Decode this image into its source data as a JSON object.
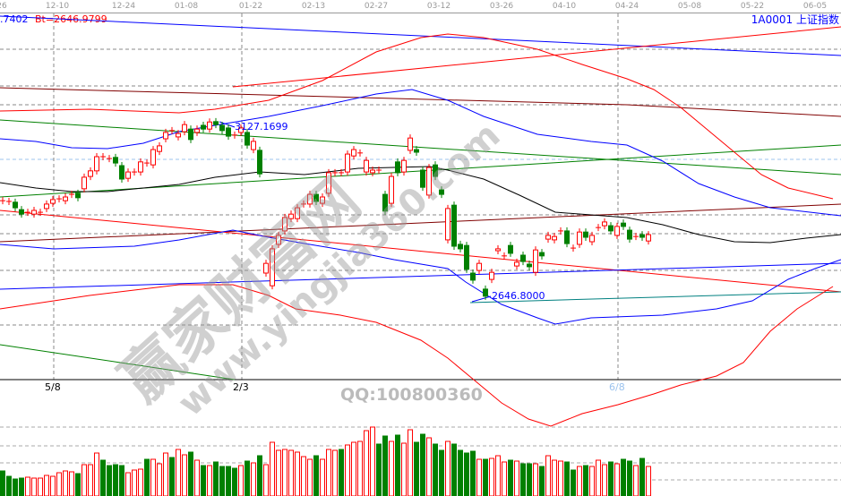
{
  "header": {
    "info_left": ".7402",
    "info_bt": "Bt=2646.9799",
    "symbol_title": "1A0001  上证指数"
  },
  "colors": {
    "up": "#ff0000",
    "down": "#008000",
    "title": "#0000ff",
    "annotation": "#0000ff"
  },
  "watermark": {
    "cn": "赢家财富网",
    "url": "www.yingjia360.com",
    "qq": "QQ:100800360"
  },
  "chart_data": {
    "type": "candlestick",
    "title": "1A0001 上证指数",
    "x_ticks": [
      "26",
      "12-10",
      "12-24",
      "01-08",
      "01-22",
      "02-13",
      "02-27",
      "03-12",
      "03-26",
      "04-10",
      "04-24",
      "05-08",
      "05-22",
      "06-05"
    ],
    "bottom_labels": [
      "5/8",
      "2/3",
      "6/8"
    ],
    "annotations": [
      {
        "text": "3127.1699",
        "price": 3127.1699
      },
      {
        "text": "2646.8000",
        "price": 2646.8
      }
    ],
    "ylim": [
      2443,
      3403
    ],
    "grid": "horizontal dashed",
    "candles_oc": [
      [
        2913,
        2913
      ],
      [
        2911,
        2911
      ],
      [
        2909,
        2894
      ],
      [
        2889,
        2877
      ],
      [
        2882,
        2882
      ],
      [
        2877,
        2887
      ],
      [
        2882,
        2882
      ],
      [
        2892,
        2904
      ],
      [
        2906,
        2916
      ],
      [
        2918,
        2918
      ],
      [
        2913,
        2923
      ],
      [
        2930,
        2930
      ],
      [
        2933,
        2921
      ],
      [
        2945,
        2976
      ],
      [
        2978,
        2993
      ],
      [
        2993,
        3031
      ],
      [
        3031,
        3031
      ],
      [
        3026,
        3026
      ],
      [
        3029,
        3014
      ],
      [
        3007,
        2971
      ],
      [
        2973,
        2990
      ],
      [
        2990,
        2990
      ],
      [
        2990,
        3017
      ],
      [
        3014,
        3014
      ],
      [
        3009,
        3050
      ],
      [
        3045,
        3060
      ],
      [
        3079,
        3096
      ],
      [
        3101,
        3101
      ],
      [
        3084,
        3093
      ],
      [
        3098,
        3117
      ],
      [
        3105,
        3077
      ],
      [
        3096,
        3105
      ],
      [
        3115,
        3105
      ],
      [
        3105,
        3124
      ],
      [
        3125,
        3117
      ],
      [
        3115,
        3101
      ],
      [
        3108,
        3086
      ],
      [
        3089,
        3089
      ],
      [
        3096,
        3108
      ],
      [
        3096,
        3062
      ],
      [
        3050,
        3072
      ],
      [
        3048,
        2985
      ],
      [
        2719,
        2745
      ],
      [
        2685,
        2784
      ],
      [
        2796,
        2820
      ],
      [
        2832,
        2868
      ],
      [
        2865,
        2877
      ],
      [
        2865,
        2894
      ],
      [
        2904,
        2904
      ],
      [
        2904,
        2930
      ],
      [
        2930,
        2911
      ],
      [
        2906,
        2923
      ],
      [
        2933,
        2988
      ],
      [
        2988,
        2988
      ],
      [
        2988,
        2988
      ],
      [
        2990,
        3038
      ],
      [
        3033,
        3050
      ],
      [
        3041,
        3041
      ],
      [
        2990,
        3021
      ],
      [
        2988,
        2995
      ],
      [
        2995,
        2995
      ],
      [
        2930,
        2885
      ],
      [
        2906,
        2978
      ],
      [
        3017,
        2988
      ],
      [
        2990,
        3021
      ],
      [
        3048,
        3081
      ],
      [
        3050,
        3043
      ],
      [
        2995,
        2949
      ],
      [
        2928,
        3002
      ],
      [
        3009,
        2978
      ],
      [
        2942,
        2930
      ],
      [
        2808,
        2892
      ],
      [
        2901,
        2791
      ],
      [
        2796,
        2784
      ],
      [
        2793,
        2729
      ],
      [
        2719,
        2700
      ],
      [
        2726,
        2745
      ],
      [
        2676,
        2657
      ],
      [
        2702,
        2721
      ],
      [
        2779,
        2784
      ],
      [
        2765,
        2765
      ],
      [
        2793,
        2772
      ],
      [
        2738,
        2748
      ],
      [
        2767,
        2750
      ],
      [
        2743,
        2736
      ],
      [
        2721,
        2781
      ],
      [
        2774,
        2765
      ],
      [
        2810,
        2820
      ],
      [
        2808,
        2817
      ],
      [
        2832,
        2832
      ],
      [
        2832,
        2798
      ],
      [
        2786,
        2786
      ],
      [
        2796,
        2829
      ],
      [
        2829,
        2815
      ],
      [
        2803,
        2820
      ],
      [
        2841,
        2841
      ],
      [
        2846,
        2856
      ],
      [
        2846,
        2832
      ],
      [
        2820,
        2844
      ],
      [
        2853,
        2844
      ],
      [
        2834,
        2810
      ],
      [
        2817,
        2817
      ],
      [
        2822,
        2815
      ],
      [
        2805,
        2822
      ]
    ],
    "volume": [
      28,
      22,
      19,
      20,
      21,
      20,
      20,
      23,
      22,
      26,
      28,
      27,
      25,
      35,
      35,
      48,
      40,
      34,
      35,
      34,
      26,
      29,
      30,
      41,
      41,
      36,
      48,
      43,
      52,
      46,
      49,
      40,
      34,
      34,
      38,
      33,
      33,
      31,
      34,
      39,
      37,
      45,
      35,
      60,
      51,
      52,
      51,
      49,
      44,
      41,
      45,
      41,
      52,
      51,
      52,
      57,
      60,
      61,
      73,
      77,
      58,
      67,
      61,
      68,
      59,
      74,
      60,
      69,
      65,
      58,
      51,
      61,
      58,
      51,
      48,
      50,
      41,
      41,
      42,
      45,
      38,
      40,
      39,
      36,
      36,
      36,
      33,
      45,
      40,
      39,
      38,
      29,
      33,
      34,
      33,
      40,
      35,
      38,
      36,
      41,
      39,
      34,
      42,
      33
    ],
    "volume_down": [
      0,
      1,
      2,
      3,
      12,
      16,
      17,
      18,
      19,
      23,
      27,
      30,
      32,
      34,
      35,
      36,
      37,
      39,
      41,
      50,
      54,
      60,
      61,
      63,
      66,
      67,
      69,
      70,
      72,
      73,
      74,
      75,
      77,
      81,
      83,
      84,
      86,
      90,
      91,
      93,
      97,
      99,
      100,
      102
    ]
  }
}
